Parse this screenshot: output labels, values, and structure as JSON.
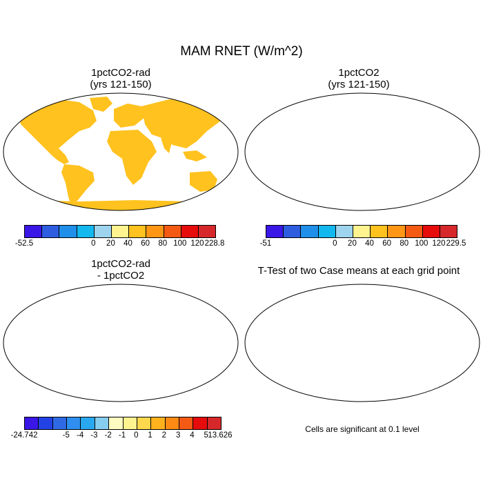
{
  "title": "MAM RNET (W/m^2)",
  "panels": {
    "p1": {
      "title_line1": "1pctCO2-rad",
      "title_line2": "(yrs 121-150)"
    },
    "p2": {
      "title_line1": "1pctCO2",
      "title_line2": "(yrs 121-150)"
    },
    "p3": {
      "title_line1": "1pctCO2-rad",
      "title_line2": "- 1pctCO2"
    },
    "p4": {
      "title_line1": "T-Test of two Case means at each grid point"
    }
  },
  "colorbars": {
    "cb1": {
      "colors": [
        "#3a17e6",
        "#2e5de0",
        "#1f8fea",
        "#13b8ef",
        "#9ed4ee",
        "#fff38f",
        "#ffc21f",
        "#ff9616",
        "#f55a14",
        "#e60c0c",
        "#d6282a"
      ],
      "labels": [
        "-52.5",
        "0",
        "20",
        "40",
        "60",
        "80",
        "100",
        "120",
        "228.8"
      ]
    },
    "cb2": {
      "colors": [
        "#3a17e6",
        "#2e5de0",
        "#1f8fea",
        "#13b8ef",
        "#9ed4ee",
        "#fff38f",
        "#ffc21f",
        "#ff9616",
        "#f55a14",
        "#e60c0c",
        "#d6282a"
      ],
      "labels": [
        "-51",
        "0",
        "20",
        "40",
        "60",
        "80",
        "100",
        "120",
        "229.5"
      ]
    },
    "cb3": {
      "colors": [
        "#3a17e6",
        "#2342e6",
        "#2f6ae4",
        "#2e8ff0",
        "#29a8f0",
        "#86cdf0",
        "#fffcc2",
        "#fff38f",
        "#ffd84d",
        "#ffb21e",
        "#ff8b15",
        "#f55a14",
        "#e60c0c",
        "#d6282a"
      ],
      "labels": [
        "-24.742",
        "-5",
        "-4",
        "-3",
        "-2",
        "-1",
        "0",
        "1",
        "2",
        "3",
        "4",
        "5",
        "13.626"
      ]
    }
  },
  "note": "Cells are significant at 0.1 level",
  "colors": {
    "ttest_significant": "#e60000",
    "ocean": "#ffffff",
    "coast": "#000000"
  }
}
